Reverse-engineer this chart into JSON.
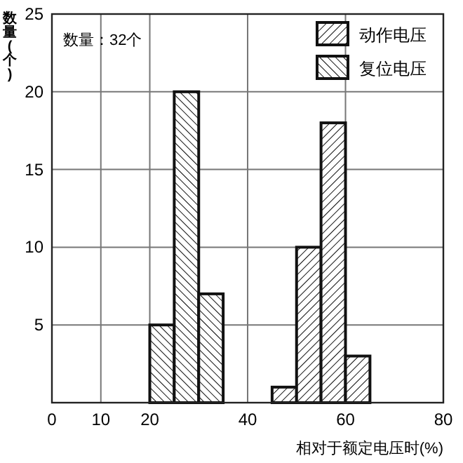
{
  "chart_data": {
    "type": "histogram",
    "ylabel": "数量(个)",
    "xlabel": "相对于额定电压时(%)",
    "annotations": [
      "数量：32个"
    ],
    "bins": [
      20,
      25,
      30,
      35,
      40,
      45,
      50,
      55,
      60,
      65
    ],
    "series": [
      {
        "name": "动作电压",
        "color": "#111111",
        "values": [
          0,
          0,
          0,
          0,
          0,
          1,
          10,
          18,
          3
        ]
      },
      {
        "name": "复位电压",
        "color": "#111111",
        "values": [
          5,
          20,
          7,
          0,
          0,
          0,
          0,
          0,
          0
        ]
      }
    ],
    "xlim": [
      0,
      80
    ],
    "xticks": [
      0,
      10,
      20,
      40,
      60,
      80
    ],
    "ylim": [
      0,
      25
    ],
    "yticks": [
      5,
      10,
      15,
      20,
      25
    ],
    "grid": true,
    "legend": "top right"
  }
}
